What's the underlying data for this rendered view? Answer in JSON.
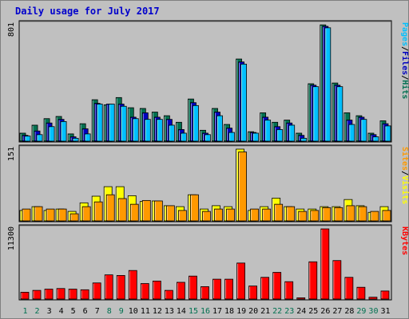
{
  "title": "Daily usage for July 2017",
  "colors": {
    "hits": "#007050",
    "files": "#0000c0",
    "pages": "#00c0ff",
    "visits": "#ffff00",
    "sites": "#ff9900",
    "kbytes": "#ff0000",
    "weekend_label": "#007050",
    "weekday_label": "#000000"
  },
  "chart_data": [
    {
      "type": "bar",
      "name": "top-panel",
      "y_max_label": "801",
      "ylim": [
        0,
        801
      ],
      "legend": [
        "Pages",
        "Files",
        "Hits"
      ],
      "categories": [
        "1",
        "2",
        "3",
        "4",
        "5",
        "6",
        "7",
        "8",
        "9",
        "10",
        "11",
        "12",
        "13",
        "14",
        "15",
        "16",
        "17",
        "18",
        "19",
        "20",
        "21",
        "22",
        "23",
        "24",
        "25",
        "26",
        "27",
        "28",
        "29",
        "30",
        "31"
      ],
      "series": [
        {
          "name": "Hits",
          "values": [
            55,
            110,
            155,
            170,
            50,
            120,
            285,
            250,
            300,
            230,
            225,
            200,
            175,
            130,
            290,
            75,
            225,
            115,
            565,
            65,
            195,
            130,
            145,
            55,
            395,
            800,
            400,
            195,
            175,
            55,
            140
          ]
        },
        {
          "name": "Files",
          "values": [
            40,
            70,
            125,
            150,
            30,
            85,
            260,
            255,
            255,
            165,
            195,
            165,
            150,
            80,
            265,
            55,
            200,
            90,
            545,
            60,
            165,
            100,
            125,
            40,
            385,
            790,
            385,
            145,
            165,
            45,
            120
          ]
        },
        {
          "name": "Pages",
          "values": [
            35,
            45,
            100,
            135,
            20,
            50,
            255,
            255,
            240,
            155,
            150,
            150,
            110,
            55,
            245,
            45,
            175,
            60,
            530,
            55,
            145,
            80,
            110,
            20,
            375,
            780,
            375,
            115,
            150,
            30,
            105
          ]
        }
      ]
    },
    {
      "type": "bar",
      "name": "middle-panel",
      "y_max_label": "151",
      "ylim": [
        0,
        151
      ],
      "legend": [
        "Sites",
        "Visits"
      ],
      "categories": [
        "1",
        "2",
        "3",
        "4",
        "5",
        "6",
        "7",
        "8",
        "9",
        "10",
        "11",
        "12",
        "13",
        "14",
        "15",
        "16",
        "17",
        "18",
        "19",
        "20",
        "21",
        "22",
        "23",
        "24",
        "25",
        "26",
        "27",
        "28",
        "29",
        "30",
        "31"
      ],
      "series": [
        {
          "name": "Visits",
          "values": [
            22,
            30,
            22,
            25,
            20,
            38,
            52,
            72,
            72,
            53,
            41,
            42,
            32,
            30,
            55,
            25,
            32,
            30,
            151,
            22,
            30,
            48,
            30,
            25,
            25,
            30,
            30,
            45,
            32,
            18,
            30
          ]
        },
        {
          "name": "Sites",
          "values": [
            25,
            30,
            25,
            25,
            15,
            30,
            40,
            55,
            47,
            35,
            43,
            42,
            32,
            22,
            55,
            20,
            25,
            25,
            145,
            25,
            25,
            35,
            30,
            20,
            22,
            28,
            28,
            32,
            30,
            20,
            22
          ]
        }
      ]
    },
    {
      "type": "bar",
      "name": "bottom-panel",
      "y_max_label": "11300",
      "ylim": [
        0,
        11300
      ],
      "legend": [
        "KBytes"
      ],
      "categories": [
        "1",
        "2",
        "3",
        "4",
        "5",
        "6",
        "7",
        "8",
        "9",
        "10",
        "11",
        "12",
        "13",
        "14",
        "15",
        "16",
        "17",
        "18",
        "19",
        "20",
        "21",
        "22",
        "23",
        "24",
        "25",
        "26",
        "27",
        "28",
        "29",
        "30",
        "31"
      ],
      "series": [
        {
          "name": "KBytes",
          "values": [
            1100,
            1400,
            1600,
            1700,
            1600,
            1500,
            2600,
            3900,
            3800,
            4600,
            2500,
            2900,
            1400,
            2700,
            3700,
            2000,
            3200,
            3200,
            5800,
            2100,
            3500,
            4300,
            2800,
            200,
            6000,
            11300,
            6200,
            3500,
            1900,
            300,
            1300
          ]
        }
      ]
    }
  ]
}
